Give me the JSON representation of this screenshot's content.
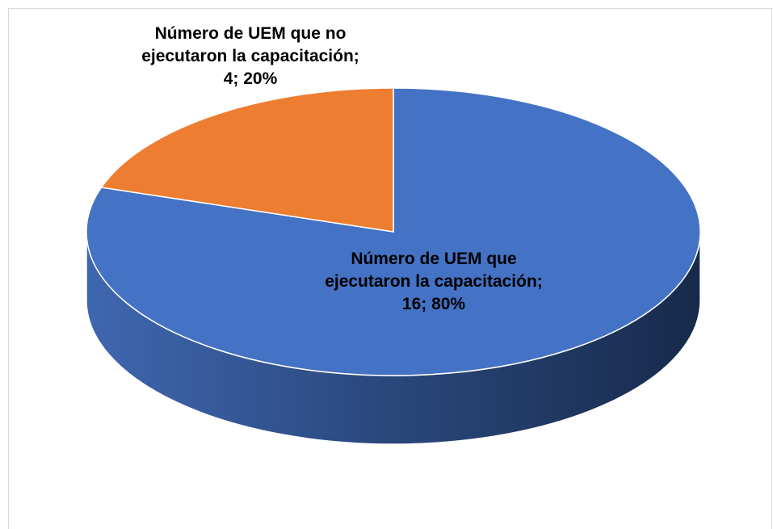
{
  "chart_data": {
    "type": "pie",
    "values": [
      16,
      4
    ],
    "value_labels": [
      "Número de UEM que ejecutaron la capacitación; 16; 80%",
      "Número de UEM que no ejecutaron la capacitación; 4; 20%"
    ],
    "colors": [
      "#4472c4",
      "#ed7d31"
    ],
    "start_angle": 0,
    "direction": "clockwise",
    "three_d": true
  }
}
